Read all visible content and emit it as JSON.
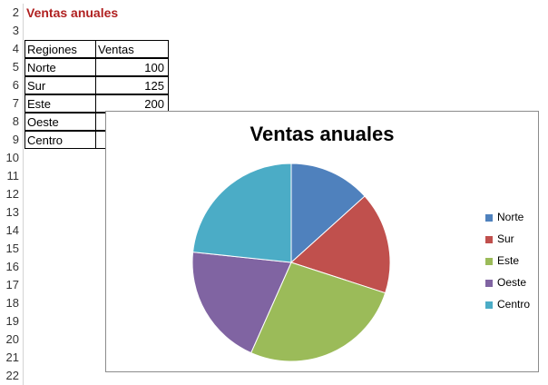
{
  "sheet": {
    "row_numbers": [
      "2",
      "3",
      "4",
      "5",
      "6",
      "7",
      "8",
      "9",
      "10",
      "11",
      "12",
      "13",
      "14",
      "15",
      "16",
      "17",
      "18",
      "19",
      "20",
      "21",
      "22"
    ],
    "title": "Ventas anuales",
    "table": {
      "headers": [
        "Regiones",
        "Ventas"
      ],
      "rows": [
        {
          "region": "Norte",
          "ventas": "100"
        },
        {
          "region": "Sur",
          "ventas": "125"
        },
        {
          "region": "Este",
          "ventas": "200"
        },
        {
          "region": "Oeste",
          "ventas": ""
        },
        {
          "region": "Centro",
          "ventas": ""
        }
      ]
    }
  },
  "chart_data": {
    "type": "pie",
    "title": "Ventas anuales",
    "categories": [
      "Norte",
      "Sur",
      "Este",
      "Oeste",
      "Centro"
    ],
    "values": [
      100,
      125,
      200,
      150,
      175
    ],
    "colors": [
      "#4f81bd",
      "#c0504d",
      "#9bbb59",
      "#8064a2",
      "#4bacc6"
    ],
    "legend_position": "right"
  }
}
